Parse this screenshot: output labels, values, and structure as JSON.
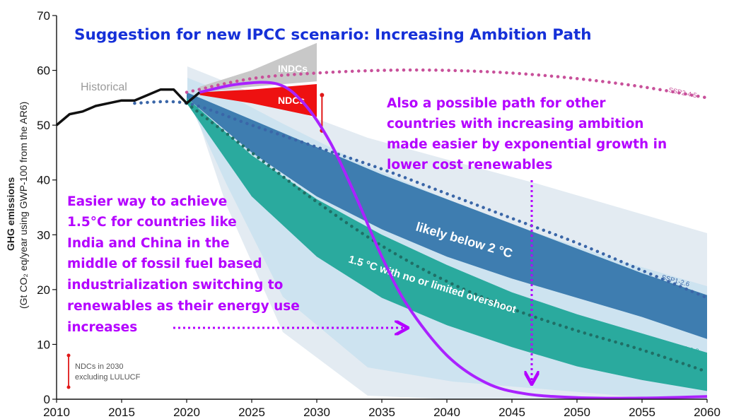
{
  "chart_data": {
    "type": "area",
    "title": "Suggestion for new IPCC scenario: Increasing Ambition Path",
    "ylabel_line1": "GHG emissions",
    "ylabel_line2": "(Gt CO₂ eq/year using GWP-100 from the AR6)",
    "xlim": [
      2010,
      2060
    ],
    "ylim": [
      0,
      70
    ],
    "xticks": [
      "2010",
      "2015",
      "2020",
      "2025",
      "2030",
      "2035",
      "2040",
      "2045",
      "2050",
      "2055",
      "2060"
    ],
    "yticks": [
      "0",
      "10",
      "20",
      "30",
      "40",
      "50",
      "60",
      "70"
    ],
    "grid": false,
    "historical": {
      "label": "Historical",
      "x": [
        2010,
        2011,
        2012,
        2013,
        2014,
        2015,
        2016,
        2017,
        2018,
        2019,
        2020,
        2021
      ],
      "y": [
        50,
        52,
        52.5,
        53.5,
        54,
        54.5,
        54.5,
        55.5,
        56.5,
        56.5,
        54,
        56
      ]
    },
    "ndc_ranges": [
      {
        "label": "INDCs",
        "color": "#c8c8c8",
        "x": [
          2021,
          2025,
          2030
        ],
        "upper": [
          57,
          60,
          65
        ],
        "lower": [
          56,
          57,
          58
        ]
      },
      {
        "label": "NDCs",
        "color": "#ee1111",
        "x": [
          2021,
          2025,
          2030
        ],
        "upper": [
          56,
          56.5,
          57.5
        ],
        "lower": [
          55.5,
          54,
          51.5
        ]
      }
    ],
    "ndc_2030_marker": {
      "x": 2030.4,
      "low": 49,
      "high": 55.5
    },
    "pathways": [
      {
        "name": "SSP2-4.5",
        "style": "dotted",
        "color": "#c8509a",
        "x": [
          2020,
          2025,
          2030,
          2035,
          2040,
          2045,
          2050,
          2055,
          2060
        ],
        "y": [
          56,
          58.5,
          59.5,
          60,
          60,
          59.5,
          58.5,
          57,
          55
        ]
      },
      {
        "name": "SSP1-2.6",
        "style": "dotted",
        "color": "#3a66a8",
        "x": [
          2016,
          2020,
          2025,
          2030,
          2035,
          2040,
          2045,
          2050,
          2055,
          2060
        ],
        "y": [
          54,
          54,
          50,
          46,
          42,
          37.5,
          33,
          28.5,
          23.5,
          18.5
        ]
      },
      {
        "name": "SSP1-1.9",
        "style": "dotted",
        "color": "#1f6f66",
        "x": [
          2020,
          2025,
          2030,
          2035,
          2040,
          2045,
          2050,
          2055,
          2060
        ],
        "y": [
          54,
          45,
          36,
          28,
          21.5,
          16.5,
          12.5,
          9,
          5
        ]
      }
    ],
    "bands": [
      {
        "label": "likely below 2 °C",
        "color": "#3e7db0",
        "x": [
          2020,
          2025,
          2030,
          2035,
          2040,
          2045,
          2050,
          2055,
          2060
        ],
        "upper": [
          56,
          51,
          46,
          41,
          36.5,
          32,
          27.5,
          23,
          19
        ],
        "lower": [
          55,
          45,
          37,
          31,
          26,
          22,
          18.5,
          15,
          11
        ]
      },
      {
        "label": "1.5 °C with no or limited overshoot",
        "color": "#2aaa9e",
        "x": [
          2020,
          2025,
          2030,
          2035,
          2040,
          2045,
          2050,
          2055,
          2060
        ],
        "upper": [
          55,
          44.5,
          36.5,
          30,
          24.5,
          19.5,
          15.5,
          12,
          8.5
        ],
        "lower": [
          54,
          37,
          26,
          18.5,
          13.5,
          9.5,
          6,
          3.5,
          1.5
        ]
      }
    ],
    "increasing_ambition_path": {
      "color": "#aa22ff",
      "x": [
        2021,
        2024,
        2027,
        2029,
        2031,
        2033,
        2035,
        2037,
        2040,
        2043,
        2046,
        2050,
        2055,
        2060
      ],
      "y": [
        56,
        57.5,
        57.5,
        54,
        47,
        37,
        26,
        17,
        8,
        3,
        1,
        0.3,
        0.2,
        0.5
      ]
    },
    "annotations": {
      "right": [
        "Also a possible path for other",
        "countries with increasing ambition",
        "made easier by exponential growth in",
        "lower cost renewables"
      ],
      "left": [
        "Easier way to achieve",
        "1.5°C for countries like",
        "India and China in the",
        "middle of fossil fuel based",
        "industrialization switching to",
        "renewables as their energy use",
        "increases"
      ],
      "ndc_note": [
        "NDCs in 2030",
        "excluding LULUCF"
      ]
    }
  }
}
